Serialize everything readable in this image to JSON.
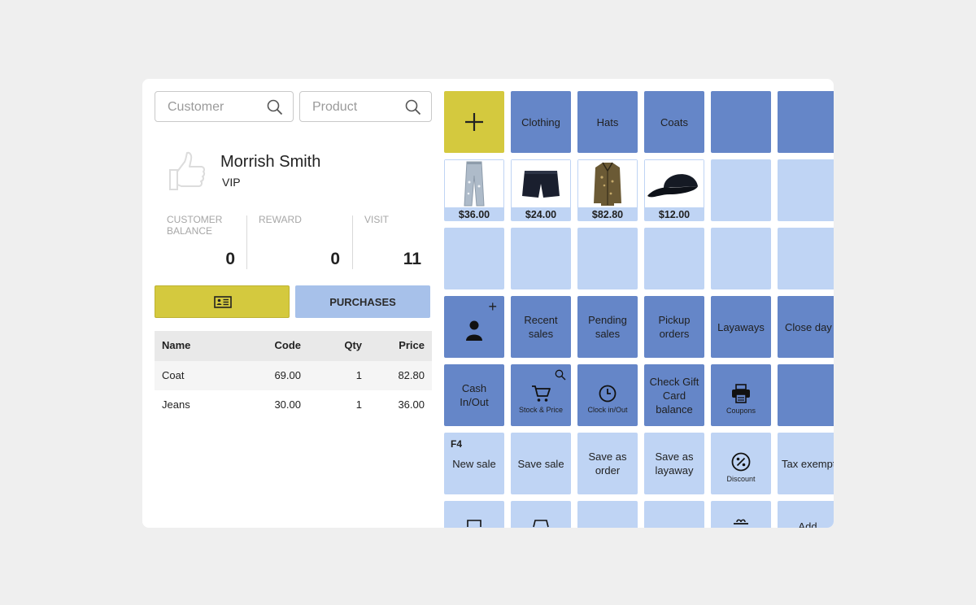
{
  "search": {
    "customer_placeholder": "Customer",
    "product_placeholder": "Product"
  },
  "customer": {
    "name": "Morrish Smith",
    "tier": "VIP",
    "stats": [
      {
        "label": "CUSTOMER\nBALANCE",
        "value": "0"
      },
      {
        "label": "REWARD",
        "value": "0"
      },
      {
        "label": "VISIT",
        "value": "11"
      }
    ]
  },
  "actions": {
    "purchases_label": "PURCHASES"
  },
  "colors": {
    "accent_yellow": "#d4c93e",
    "tile_dark_blue": "#6586c8",
    "tile_light_blue": "#bfd4f4",
    "purchases_blue": "#a7c1ea"
  },
  "cart": {
    "headers": {
      "name": "Name",
      "code": "Code",
      "qty": "Qty",
      "price": "Price"
    },
    "rows": [
      {
        "name": "Coat",
        "code": "69.00",
        "qty": "1",
        "price": "82.80"
      },
      {
        "name": "Jeans",
        "code": "30.00",
        "qty": "1",
        "price": "36.00"
      }
    ]
  },
  "grid": {
    "add_icon": "plus-icon",
    "categories": [
      "Clothing",
      "Hats",
      "Coats"
    ],
    "products": [
      {
        "icon": "jeans-icon",
        "price": "$36.00"
      },
      {
        "icon": "shorts-icon",
        "price": "$24.00"
      },
      {
        "icon": "coat-icon",
        "price": "$82.80"
      },
      {
        "icon": "cap-icon",
        "price": "$12.00"
      }
    ],
    "row4": {
      "add_customer_icon": "add-person-icon",
      "recent_sales": "Recent\nsales",
      "pending_sales": "Pending\nsales",
      "pickup_orders": "Pickup\norders",
      "layaways": "Layaways",
      "close_day": "Close day"
    },
    "row5": {
      "cash_in_out": "Cash\nIn/Out",
      "stock_price": "Stock & Price",
      "clock_in_out": "Clock in/Out",
      "gift_card": "Check Gift\nCard\nbalance",
      "coupons": "Coupons"
    },
    "row6": {
      "fkey": "F4",
      "new_sale": "New sale",
      "save_sale": "Save sale",
      "save_as_order": "Save as\norder",
      "save_as_layaway": "Save as\nlayaway",
      "discount": "Discount",
      "tax_exempt": "Tax exempt"
    },
    "row7": {
      "add": "Add"
    }
  }
}
